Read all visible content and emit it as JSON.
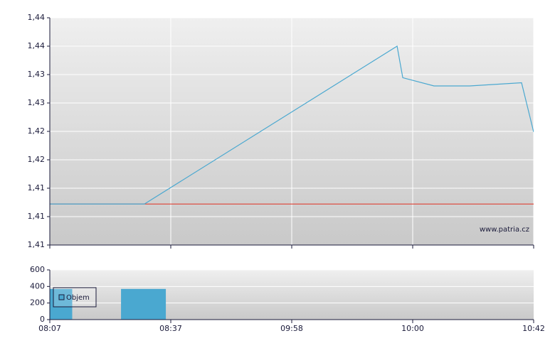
{
  "chart_data": [
    {
      "type": "line",
      "x": [
        0,
        0.782,
        2.871,
        2.918,
        3.176,
        3.471,
        3.9,
        4
      ],
      "values": [
        1.412,
        1.412,
        1.437,
        1.432,
        1.4307,
        1.4307,
        1.4312,
        1.4234
      ],
      "color": "#4aa8d0",
      "reference_line": 1.412,
      "reference_color": "#e03020",
      "xlim": [
        0,
        4
      ],
      "xticks": [
        0,
        1,
        2,
        3,
        4
      ],
      "ylim": [
        1.4055,
        1.4415
      ],
      "yticks": [
        {
          "value": 1.4055,
          "label": "1,41"
        },
        {
          "value": 1.41,
          "label": "1,41"
        },
        {
          "value": 1.4145,
          "label": "1,41"
        },
        {
          "value": 1.419,
          "label": "1,42"
        },
        {
          "value": 1.4235,
          "label": "1,42"
        },
        {
          "value": 1.428,
          "label": "1,43"
        },
        {
          "value": 1.4325,
          "label": "1,43"
        },
        {
          "value": 1.437,
          "label": "1,44"
        },
        {
          "value": 1.4415,
          "label": "1,44"
        }
      ],
      "grid": true,
      "watermark": "www.patria.cz"
    },
    {
      "type": "bar",
      "x": [
        0,
        0.774
      ],
      "series": [
        {
          "name": "Objem",
          "color": "#4aa8d0",
          "values": [
            370,
            370
          ]
        }
      ],
      "xlim": [
        0,
        4
      ],
      "xticks": [
        {
          "value": 0,
          "label": "08:07"
        },
        {
          "value": 1,
          "label": "08:37"
        },
        {
          "value": 2,
          "label": "09:58"
        },
        {
          "value": 3,
          "label": "10:00"
        },
        {
          "value": 4,
          "label": "10:42"
        }
      ],
      "ylim": [
        0,
        600
      ],
      "yticks": [
        0,
        200,
        400,
        600
      ],
      "grid": true,
      "legend": "top-left"
    }
  ]
}
